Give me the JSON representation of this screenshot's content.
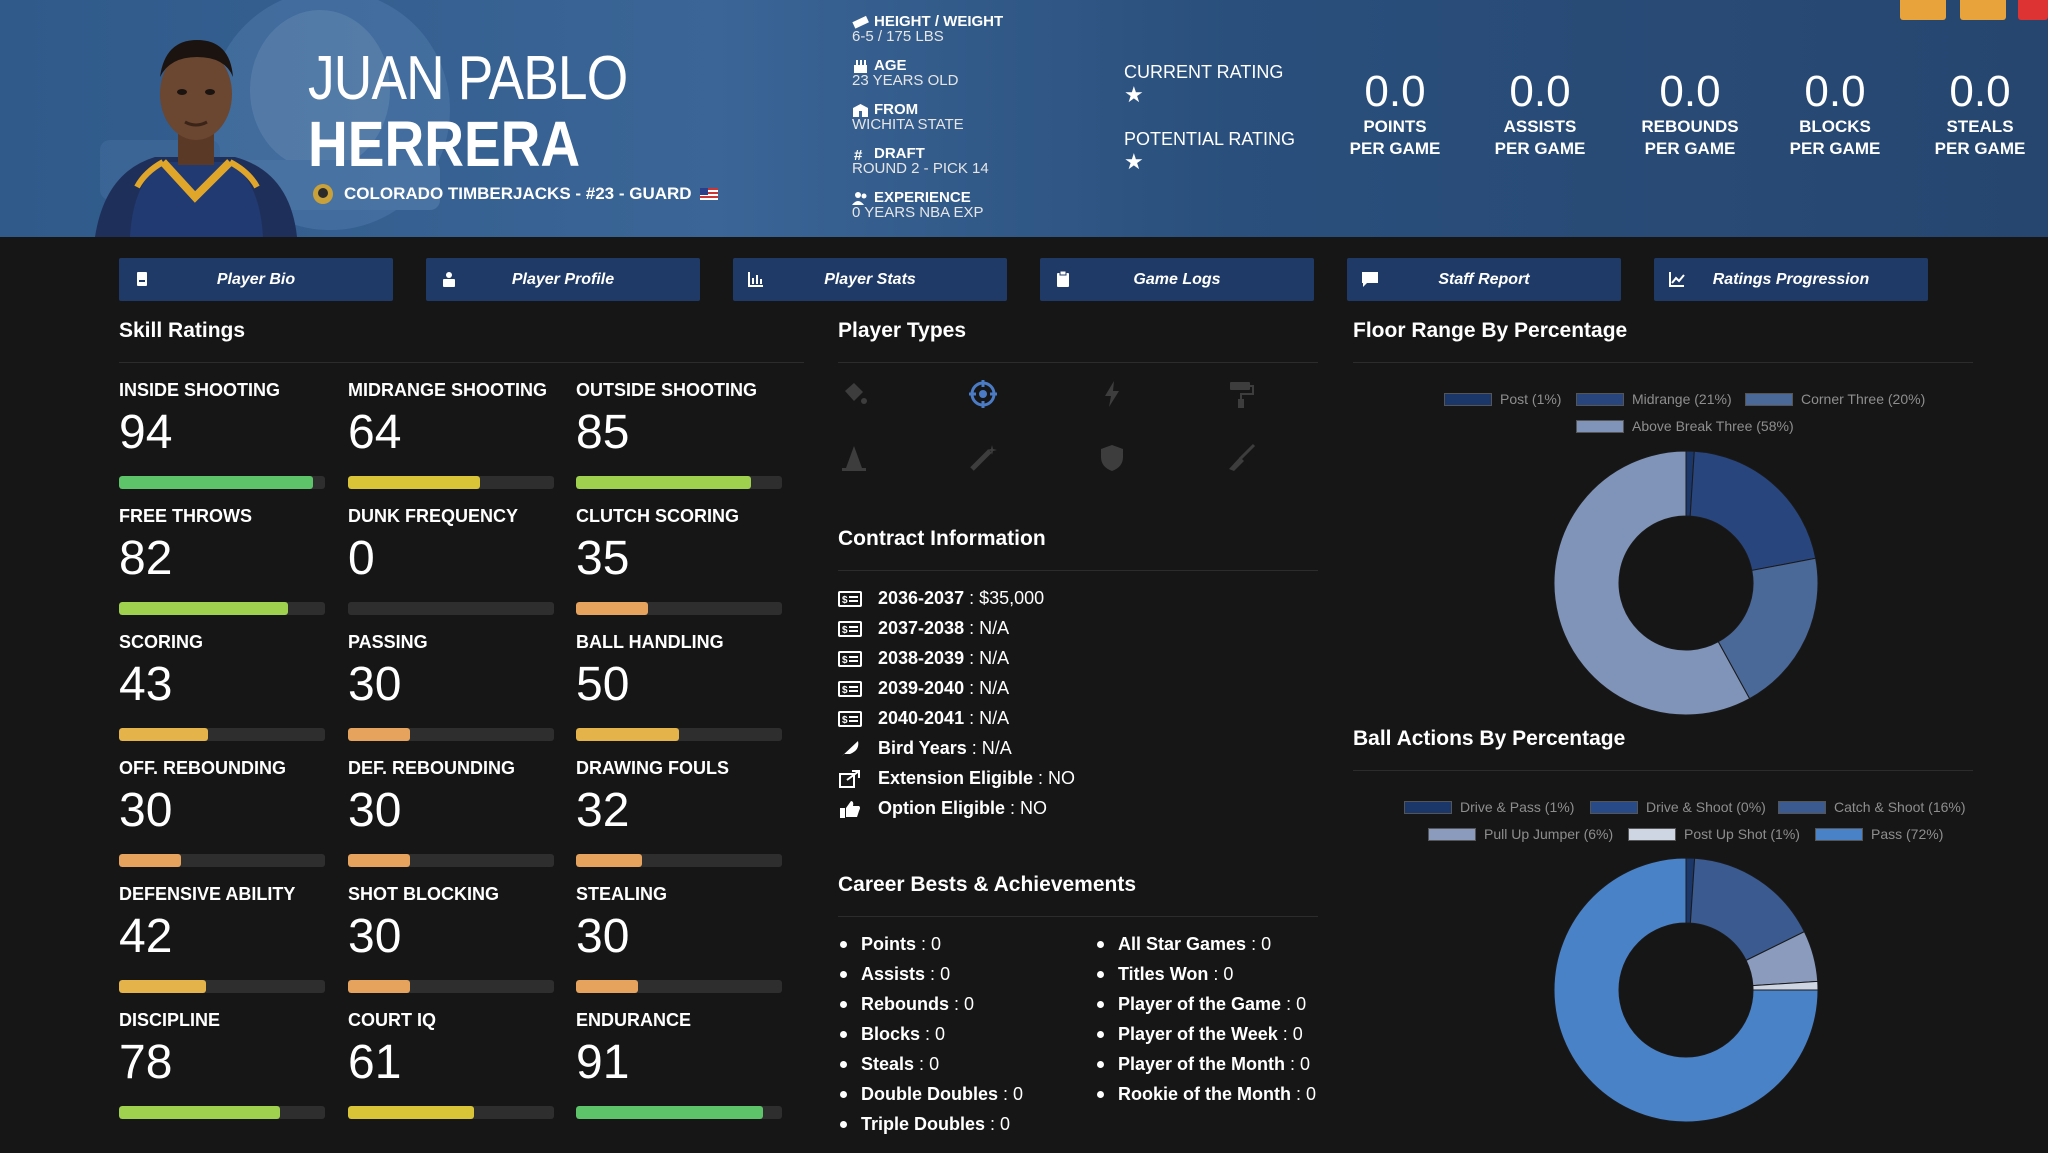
{
  "player": {
    "first_name": "JUAN PABLO",
    "last_name": "HERRERA",
    "team_line": "COLORADO TIMBERJACKS - #23 - GUARD"
  },
  "bio": {
    "height_weight_label": "HEIGHT / WEIGHT",
    "height_weight": "6-5 / 175 LBS",
    "age_label": "AGE",
    "age": "23 YEARS OLD",
    "from_label": "FROM",
    "from": "WICHITA STATE",
    "draft_label": "DRAFT",
    "draft": "ROUND 2 - PICK 14",
    "experience_label": "EXPERIENCE",
    "experience": "0 YEARS NBA EXP"
  },
  "ratings": {
    "current_label": "CURRENT RATING",
    "current_stars": 1,
    "potential_label": "POTENTIAL RATING",
    "potential_stars": 1
  },
  "stats": [
    {
      "value": "0.0",
      "line1": "POINTS",
      "line2": "PER GAME"
    },
    {
      "value": "0.0",
      "line1": "ASSISTS",
      "line2": "PER GAME"
    },
    {
      "value": "0.0",
      "line1": "REBOUNDS",
      "line2": "PER GAME"
    },
    {
      "value": "0.0",
      "line1": "BLOCKS",
      "line2": "PER GAME"
    },
    {
      "value": "0.0",
      "line1": "STEALS",
      "line2": "PER GAME"
    }
  ],
  "tabs": [
    {
      "label": "Player Bio",
      "icon": "id-card-icon"
    },
    {
      "label": "Player Profile",
      "icon": "profile-icon"
    },
    {
      "label": "Player Stats",
      "icon": "bar-chart-icon"
    },
    {
      "label": "Game Logs",
      "icon": "clipboard-icon"
    },
    {
      "label": "Staff Report",
      "icon": "comment-icon"
    },
    {
      "label": "Ratings Progression",
      "icon": "line-chart-icon"
    }
  ],
  "sections": {
    "skill_ratings": "Skill Ratings",
    "player_types": "Player Types",
    "floor_range": "Floor Range By Percentage",
    "contract": "Contract Information",
    "ball_actions": "Ball Actions By Percentage",
    "career": "Career Bests & Achievements"
  },
  "skills": [
    {
      "label": "INSIDE SHOOTING",
      "value": "94",
      "level": 0.94,
      "color": "#5ec46a"
    },
    {
      "label": "MIDRANGE SHOOTING",
      "value": "64",
      "level": 0.64,
      "color": "#d8c436"
    },
    {
      "label": "OUTSIDE SHOOTING",
      "value": "85",
      "level": 0.85,
      "color": "#9fd04e"
    },
    {
      "label": "FREE THROWS",
      "value": "82",
      "level": 0.82,
      "color": "#9fd04e"
    },
    {
      "label": "DUNK FREQUENCY",
      "value": "0",
      "level": 0.0,
      "color": "#e49a54"
    },
    {
      "label": "CLUTCH SCORING",
      "value": "35",
      "level": 0.35,
      "color": "#e6a35e"
    },
    {
      "label": "SCORING",
      "value": "43",
      "level": 0.43,
      "color": "#e4b44a"
    },
    {
      "label": "PASSING",
      "value": "30",
      "level": 0.3,
      "color": "#e6a35e"
    },
    {
      "label": "BALL HANDLING",
      "value": "50",
      "level": 0.5,
      "color": "#e4b44a"
    },
    {
      "label": "OFF. REBOUNDING",
      "value": "30",
      "level": 0.3,
      "color": "#e6a35e"
    },
    {
      "label": "DEF. REBOUNDING",
      "value": "30",
      "level": 0.3,
      "color": "#e6a35e"
    },
    {
      "label": "DRAWING FOULS",
      "value": "32",
      "level": 0.32,
      "color": "#e6a35e"
    },
    {
      "label": "DEFENSIVE ABILITY",
      "value": "42",
      "level": 0.42,
      "color": "#e4b44a"
    },
    {
      "label": "SHOT BLOCKING",
      "value": "30",
      "level": 0.3,
      "color": "#e6a35e"
    },
    {
      "label": "STEALING",
      "value": "30",
      "level": 0.3,
      "color": "#e6a35e"
    },
    {
      "label": "DISCIPLINE",
      "value": "78",
      "level": 0.78,
      "color": "#9fd04e"
    },
    {
      "label": "COURT IQ",
      "value": "61",
      "level": 0.61,
      "color": "#d8c436"
    },
    {
      "label": "ENDURANCE",
      "value": "91",
      "level": 0.91,
      "color": "#5ec46a"
    }
  ],
  "player_types": [
    {
      "icon": "paint-bucket-icon",
      "active": false
    },
    {
      "icon": "crosshair-icon",
      "active": true
    },
    {
      "icon": "lightning-icon",
      "active": false
    },
    {
      "icon": "paint-roller-icon",
      "active": false
    },
    {
      "icon": "road-cone-icon",
      "active": false
    },
    {
      "icon": "magic-wand-icon",
      "active": false
    },
    {
      "icon": "shield-icon",
      "active": false
    },
    {
      "icon": "broom-icon",
      "active": false
    }
  ],
  "contract": [
    {
      "icon": "money-icon",
      "key": "2036-2037",
      "value": "$35,000"
    },
    {
      "icon": "money-icon",
      "key": "2037-2038",
      "value": "N/A"
    },
    {
      "icon": "money-icon",
      "key": "2038-2039",
      "value": "N/A"
    },
    {
      "icon": "money-icon",
      "key": "2039-2040",
      "value": "N/A"
    },
    {
      "icon": "money-icon",
      "key": "2040-2041",
      "value": "N/A"
    },
    {
      "icon": "feather-icon",
      "key": "Bird Years",
      "value": "N/A"
    },
    {
      "icon": "external-link-icon",
      "key": "Extension Eligible",
      "value": "NO"
    },
    {
      "icon": "thumbs-up-icon",
      "key": "Option Eligible",
      "value": "NO"
    }
  ],
  "career_left": [
    {
      "key": "Points",
      "value": "0"
    },
    {
      "key": "Assists",
      "value": "0"
    },
    {
      "key": "Rebounds",
      "value": "0"
    },
    {
      "key": "Blocks",
      "value": "0"
    },
    {
      "key": "Steals",
      "value": "0"
    },
    {
      "key": "Double Doubles",
      "value": "0"
    },
    {
      "key": "Triple Doubles",
      "value": "0"
    }
  ],
  "career_right": [
    {
      "key": "All Star Games",
      "value": "0"
    },
    {
      "key": "Titles Won",
      "value": "0"
    },
    {
      "key": "Player of the Game",
      "value": "0"
    },
    {
      "key": "Player of the Week",
      "value": "0"
    },
    {
      "key": "Player of the Month",
      "value": "0"
    },
    {
      "key": "Rookie of the Month",
      "value": "0"
    }
  ],
  "chart_data": [
    {
      "type": "pie",
      "title": "Floor Range By Percentage",
      "categories": [
        "Post",
        "Midrange",
        "Corner Three",
        "Above Break Three"
      ],
      "legend": [
        "Post (1%)",
        "Midrange (21%)",
        "Corner Three (20%)",
        "Above Break Three (58%)"
      ],
      "values": [
        1,
        21,
        20,
        58
      ],
      "colors": [
        "#1b3668",
        "#28467d",
        "#4a6898",
        "#7f94b8"
      ],
      "legend_position": "top"
    },
    {
      "type": "pie",
      "title": "Ball Actions By Percentage",
      "categories": [
        "Drive & Pass",
        "Drive & Shoot",
        "Catch & Shoot",
        "Pull Up Jumper",
        "Post Up Shot",
        "Pass"
      ],
      "legend": [
        "Drive & Pass (1%)",
        "Drive & Shoot (0%)",
        "Catch & Shoot (16%)",
        "Pull Up Jumper (6%)",
        "Post Up Shot (1%)",
        "Pass (72%)"
      ],
      "values": [
        1,
        0,
        16,
        6,
        1,
        72
      ],
      "colors": [
        "#1b3668",
        "#284a86",
        "#3a5a90",
        "#8a9bbd",
        "#cfd6e3",
        "#4a82c8"
      ],
      "legend_position": "top"
    }
  ]
}
